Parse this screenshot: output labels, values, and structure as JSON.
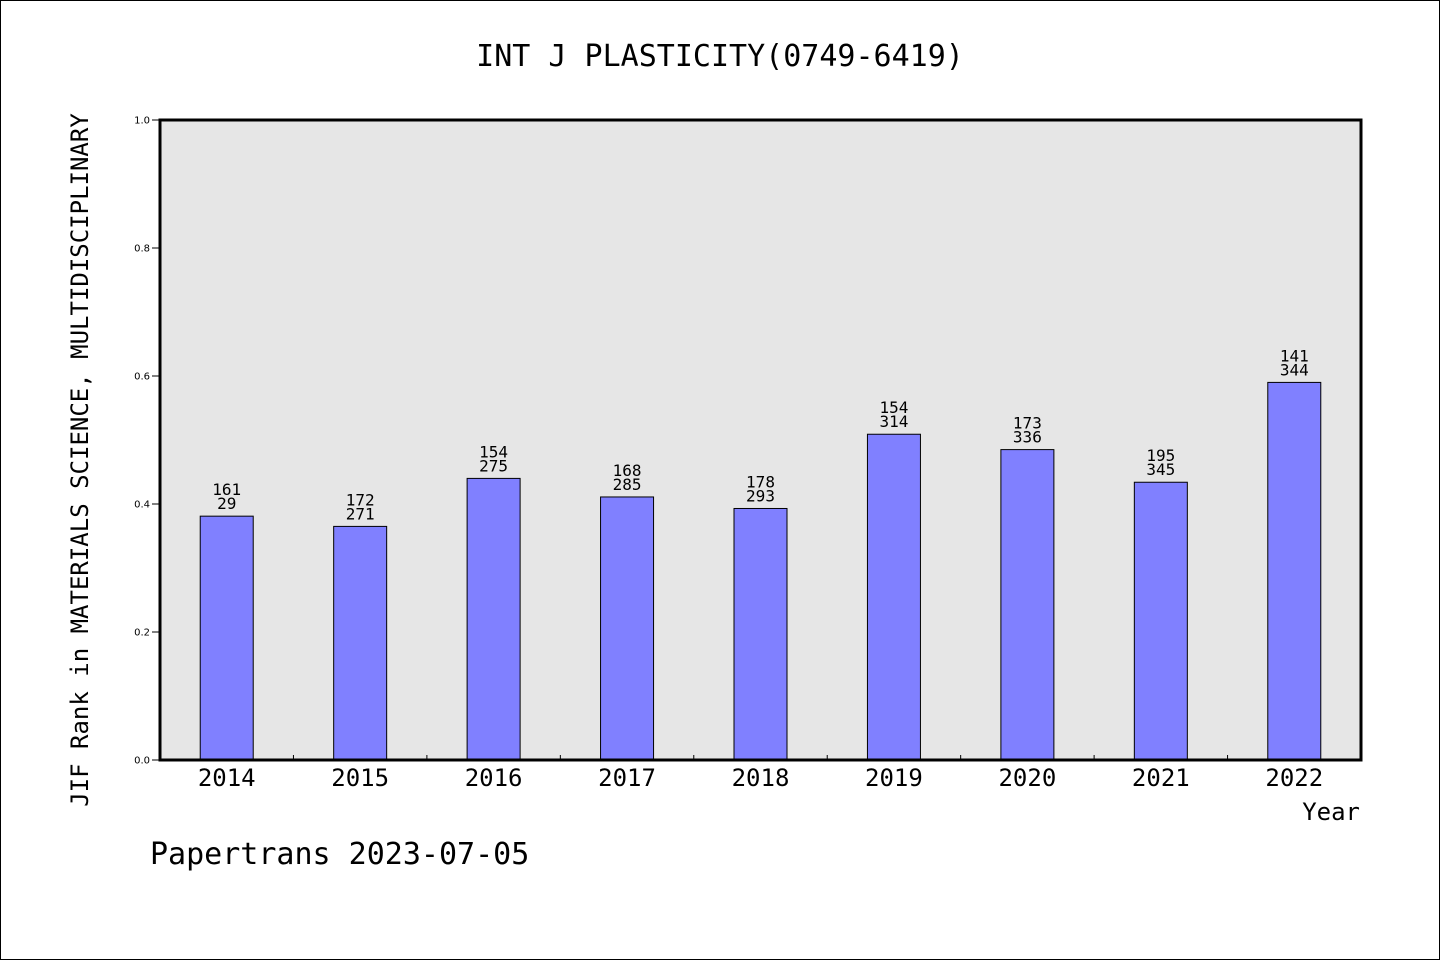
{
  "chart_data": {
    "type": "bar",
    "title": "INT J PLASTICITY(0749-6419)",
    "xlabel": "Year",
    "ylabel": "JIF Rank in MATERIALS SCIENCE, MULTIDISCIPLINARY",
    "categories": [
      "2014",
      "2015",
      "2016",
      "2017",
      "2018",
      "2019",
      "2020",
      "2021",
      "2022"
    ],
    "values": [
      0.381,
      0.365,
      0.44,
      0.411,
      0.393,
      0.509,
      0.485,
      0.434,
      0.59
    ],
    "labels_top": [
      "161",
      "172",
      "154",
      "168",
      "178",
      "154",
      "173",
      "195",
      "141"
    ],
    "labels_bottom": [
      "29",
      "271",
      "275",
      "285",
      "293",
      "314",
      "336",
      "345",
      "344"
    ],
    "ylim": [
      0,
      1.0
    ],
    "yticks": [
      "0.0",
      "0.2",
      "0.4",
      "0.6",
      "0.8",
      "1.0"
    ],
    "grid": false,
    "colors": {
      "bar": "#8080ff",
      "plot_bg": "#e6e6e6"
    }
  },
  "footer": "Papertrans 2023-07-05"
}
